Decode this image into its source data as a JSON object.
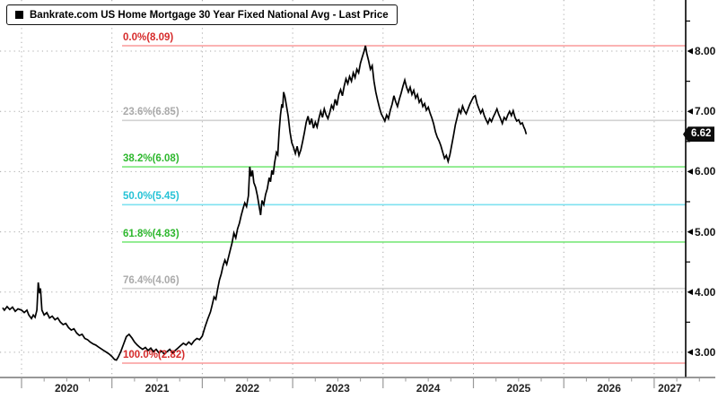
{
  "legend": {
    "label": "Bankrate.com US Home Mortgage 30 Year Fixed National Avg - Last Price"
  },
  "last_price": {
    "value": "6.62"
  },
  "colors": {
    "red_line": "#fa9a9a",
    "red_text": "#d62b2b",
    "gray_line": "#d2d2d2",
    "gray_text": "#aaaaaa",
    "green_line": "#7ce87c",
    "green_text": "#2eb82e",
    "cyan_line": "#7fe2f0",
    "cyan_text": "#25c2d6",
    "price": "#000000",
    "grid": "#a8a8a8",
    "y_axis": "#000000",
    "x_axis": "#777777",
    "badge_bg": "#0d0d0d",
    "badge_text": "#ffffff"
  },
  "chart_data": {
    "type": "line",
    "title": "Bankrate.com US Home Mortgage 30 Year Fixed National Avg - Last Price",
    "last_value": 6.62,
    "fib_levels": [
      {
        "label": "0.0%(8.09)",
        "pct": "0.0%",
        "value": 8.09,
        "color": "red"
      },
      {
        "label": "23.6%(6.85)",
        "pct": "23.6%",
        "value": 6.85,
        "color": "gray"
      },
      {
        "label": "38.2%(6.08)",
        "pct": "38.2%",
        "value": 6.08,
        "color": "green"
      },
      {
        "label": "50.0%(5.45)",
        "pct": "50.0%",
        "value": 5.45,
        "color": "cyan"
      },
      {
        "label": "61.8%(4.83)",
        "pct": "61.8%",
        "value": 4.83,
        "color": "green"
      },
      {
        "label": "76.4%(4.06)",
        "pct": "76.4%",
        "value": 4.06,
        "color": "gray"
      },
      {
        "label": "100.0%(2.82)",
        "pct": "100.0%",
        "value": 2.82,
        "color": "red"
      }
    ],
    "y_axis": {
      "major": [
        {
          "value": 8,
          "label": "8.00"
        },
        {
          "value": 7,
          "label": "7.00"
        },
        {
          "value": 6,
          "label": "6.00"
        },
        {
          "value": 5,
          "label": "5.00"
        },
        {
          "value": 4,
          "label": "4.00"
        },
        {
          "value": 3,
          "label": "3.00"
        }
      ],
      "minor": [
        8.5,
        7.5,
        6.5,
        5.5,
        4.5,
        3.5
      ],
      "range": [
        2.7,
        8.85
      ]
    },
    "x_axis": {
      "years": [
        {
          "value": 2020,
          "label": "2020"
        },
        {
          "value": 2021,
          "label": "2021"
        },
        {
          "value": 2022,
          "label": "2022"
        },
        {
          "value": 2023,
          "label": "2023"
        },
        {
          "value": 2024,
          "label": "2024"
        },
        {
          "value": 2025,
          "label": "2025"
        },
        {
          "value": 2026,
          "label": "2026"
        },
        {
          "value": 2027,
          "label": "2027"
        }
      ],
      "range": [
        2019.77,
        2027.35
      ]
    },
    "series": [
      {
        "name": "Bankrate.com US Home Mortgage 30 Year Fixed National Avg",
        "points": [
          [
            2019.79,
            3.74
          ],
          [
            2019.81,
            3.7
          ],
          [
            2019.84,
            3.76
          ],
          [
            2019.87,
            3.71
          ],
          [
            2019.9,
            3.75
          ],
          [
            2019.93,
            3.68
          ],
          [
            2019.96,
            3.72
          ],
          [
            2020.0,
            3.7
          ],
          [
            2020.03,
            3.66
          ],
          [
            2020.06,
            3.7
          ],
          [
            2020.08,
            3.62
          ],
          [
            2020.11,
            3.56
          ],
          [
            2020.13,
            3.62
          ],
          [
            2020.15,
            3.58
          ],
          [
            2020.17,
            3.7
          ],
          [
            2020.185,
            4.16
          ],
          [
            2020.2,
            3.98
          ],
          [
            2020.21,
            4.06
          ],
          [
            2020.225,
            3.7
          ],
          [
            2020.25,
            3.62
          ],
          [
            2020.28,
            3.66
          ],
          [
            2020.31,
            3.57
          ],
          [
            2020.34,
            3.6
          ],
          [
            2020.37,
            3.54
          ],
          [
            2020.4,
            3.57
          ],
          [
            2020.43,
            3.5
          ],
          [
            2020.46,
            3.46
          ],
          [
            2020.49,
            3.48
          ],
          [
            2020.52,
            3.41
          ],
          [
            2020.55,
            3.37
          ],
          [
            2020.58,
            3.39
          ],
          [
            2020.61,
            3.32
          ],
          [
            2020.64,
            3.28
          ],
          [
            2020.67,
            3.3
          ],
          [
            2020.7,
            3.23
          ],
          [
            2020.73,
            3.21
          ],
          [
            2020.76,
            3.17
          ],
          [
            2020.79,
            3.14
          ],
          [
            2020.82,
            3.12
          ],
          [
            2020.85,
            3.09
          ],
          [
            2020.88,
            3.06
          ],
          [
            2020.91,
            3.03
          ],
          [
            2020.94,
            3.0
          ],
          [
            2020.97,
            2.97
          ],
          [
            2021.0,
            2.93
          ],
          [
            2021.03,
            2.88
          ],
          [
            2021.05,
            2.87
          ],
          [
            2021.07,
            2.92
          ],
          [
            2021.1,
            3.02
          ],
          [
            2021.13,
            3.14
          ],
          [
            2021.16,
            3.26
          ],
          [
            2021.19,
            3.3
          ],
          [
            2021.22,
            3.24
          ],
          [
            2021.25,
            3.17
          ],
          [
            2021.28,
            3.12
          ],
          [
            2021.31,
            3.08
          ],
          [
            2021.34,
            3.05
          ],
          [
            2021.37,
            3.08
          ],
          [
            2021.4,
            3.03
          ],
          [
            2021.43,
            3.07
          ],
          [
            2021.46,
            3.01
          ],
          [
            2021.49,
            3.05
          ],
          [
            2021.52,
            2.99
          ],
          [
            2021.55,
            3.02
          ],
          [
            2021.58,
            2.97
          ],
          [
            2021.61,
            3.01
          ],
          [
            2021.64,
            3.05
          ],
          [
            2021.67,
            2.99
          ],
          [
            2021.7,
            3.03
          ],
          [
            2021.73,
            3.07
          ],
          [
            2021.76,
            3.11
          ],
          [
            2021.79,
            3.15
          ],
          [
            2021.82,
            3.12
          ],
          [
            2021.85,
            3.17
          ],
          [
            2021.88,
            3.13
          ],
          [
            2021.91,
            3.19
          ],
          [
            2021.94,
            3.23
          ],
          [
            2021.97,
            3.21
          ],
          [
            2022.0,
            3.27
          ],
          [
            2022.03,
            3.42
          ],
          [
            2022.06,
            3.55
          ],
          [
            2022.09,
            3.67
          ],
          [
            2022.11,
            3.79
          ],
          [
            2022.13,
            3.92
          ],
          [
            2022.15,
            3.88
          ],
          [
            2022.17,
            4.05
          ],
          [
            2022.19,
            4.2
          ],
          [
            2022.21,
            4.3
          ],
          [
            2022.23,
            4.44
          ],
          [
            2022.25,
            4.53
          ],
          [
            2022.27,
            4.46
          ],
          [
            2022.29,
            4.58
          ],
          [
            2022.31,
            4.7
          ],
          [
            2022.33,
            4.82
          ],
          [
            2022.35,
            4.98
          ],
          [
            2022.37,
            4.9
          ],
          [
            2022.39,
            5.05
          ],
          [
            2022.41,
            5.14
          ],
          [
            2022.43,
            5.27
          ],
          [
            2022.45,
            5.38
          ],
          [
            2022.47,
            5.48
          ],
          [
            2022.49,
            5.42
          ],
          [
            2022.51,
            5.6
          ],
          [
            2022.525,
            6.08
          ],
          [
            2022.54,
            5.92
          ],
          [
            2022.555,
            6.02
          ],
          [
            2022.57,
            5.82
          ],
          [
            2022.59,
            5.74
          ],
          [
            2022.61,
            5.6
          ],
          [
            2022.63,
            5.42
          ],
          [
            2022.645,
            5.28
          ],
          [
            2022.66,
            5.52
          ],
          [
            2022.68,
            5.45
          ],
          [
            2022.7,
            5.62
          ],
          [
            2022.72,
            5.72
          ],
          [
            2022.74,
            5.9
          ],
          [
            2022.755,
            5.83
          ],
          [
            2022.77,
            6.02
          ],
          [
            2022.785,
            5.95
          ],
          [
            2022.8,
            6.15
          ],
          [
            2022.82,
            6.32
          ],
          [
            2022.835,
            6.28
          ],
          [
            2022.85,
            6.66
          ],
          [
            2022.865,
            6.94
          ],
          [
            2022.88,
            7.12
          ],
          [
            2022.89,
            7.06
          ],
          [
            2022.9,
            7.32
          ],
          [
            2022.915,
            7.24
          ],
          [
            2022.93,
            7.1
          ],
          [
            2022.95,
            6.92
          ],
          [
            2022.97,
            6.66
          ],
          [
            2022.99,
            6.48
          ],
          [
            2023.01,
            6.4
          ],
          [
            2023.03,
            6.3
          ],
          [
            2023.05,
            6.42
          ],
          [
            2023.07,
            6.27
          ],
          [
            2023.09,
            6.36
          ],
          [
            2023.11,
            6.5
          ],
          [
            2023.13,
            6.65
          ],
          [
            2023.15,
            6.82
          ],
          [
            2023.17,
            6.92
          ],
          [
            2023.19,
            6.78
          ],
          [
            2023.21,
            6.88
          ],
          [
            2023.23,
            6.72
          ],
          [
            2023.25,
            6.82
          ],
          [
            2023.27,
            6.74
          ],
          [
            2023.29,
            6.88
          ],
          [
            2023.31,
            7.0
          ],
          [
            2023.33,
            6.9
          ],
          [
            2023.35,
            7.04
          ],
          [
            2023.37,
            6.94
          ],
          [
            2023.39,
            6.88
          ],
          [
            2023.41,
            6.98
          ],
          [
            2023.43,
            7.1
          ],
          [
            2023.45,
            7.04
          ],
          [
            2023.47,
            7.2
          ],
          [
            2023.49,
            7.1
          ],
          [
            2023.51,
            7.28
          ],
          [
            2023.53,
            7.36
          ],
          [
            2023.55,
            7.26
          ],
          [
            2023.57,
            7.42
          ],
          [
            2023.59,
            7.54
          ],
          [
            2023.61,
            7.46
          ],
          [
            2023.63,
            7.58
          ],
          [
            2023.65,
            7.5
          ],
          [
            2023.67,
            7.64
          ],
          [
            2023.69,
            7.56
          ],
          [
            2023.71,
            7.7
          ],
          [
            2023.73,
            7.64
          ],
          [
            2023.75,
            7.8
          ],
          [
            2023.77,
            7.9
          ],
          [
            2023.79,
            8.0
          ],
          [
            2023.805,
            8.09
          ],
          [
            2023.82,
            7.96
          ],
          [
            2023.84,
            7.84
          ],
          [
            2023.86,
            7.7
          ],
          [
            2023.88,
            7.76
          ],
          [
            2023.9,
            7.5
          ],
          [
            2023.92,
            7.32
          ],
          [
            2023.94,
            7.18
          ],
          [
            2023.96,
            7.06
          ],
          [
            2023.98,
            6.96
          ],
          [
            2024.0,
            6.9
          ],
          [
            2024.02,
            6.84
          ],
          [
            2024.04,
            6.94
          ],
          [
            2024.06,
            6.88
          ],
          [
            2024.08,
            7.02
          ],
          [
            2024.1,
            7.12
          ],
          [
            2024.12,
            7.26
          ],
          [
            2024.14,
            7.16
          ],
          [
            2024.16,
            7.08
          ],
          [
            2024.18,
            7.2
          ],
          [
            2024.2,
            7.3
          ],
          [
            2024.22,
            7.42
          ],
          [
            2024.24,
            7.52
          ],
          [
            2024.26,
            7.4
          ],
          [
            2024.28,
            7.32
          ],
          [
            2024.3,
            7.4
          ],
          [
            2024.32,
            7.28
          ],
          [
            2024.34,
            7.35
          ],
          [
            2024.36,
            7.22
          ],
          [
            2024.38,
            7.28
          ],
          [
            2024.4,
            7.15
          ],
          [
            2024.42,
            7.2
          ],
          [
            2024.44,
            7.08
          ],
          [
            2024.46,
            7.13
          ],
          [
            2024.48,
            7.02
          ],
          [
            2024.5,
            7.07
          ],
          [
            2024.52,
            6.97
          ],
          [
            2024.54,
            6.89
          ],
          [
            2024.56,
            6.79
          ],
          [
            2024.58,
            6.66
          ],
          [
            2024.6,
            6.57
          ],
          [
            2024.62,
            6.51
          ],
          [
            2024.64,
            6.43
          ],
          [
            2024.66,
            6.32
          ],
          [
            2024.68,
            6.22
          ],
          [
            2024.7,
            6.27
          ],
          [
            2024.72,
            6.17
          ],
          [
            2024.74,
            6.28
          ],
          [
            2024.76,
            6.44
          ],
          [
            2024.78,
            6.6
          ],
          [
            2024.8,
            6.78
          ],
          [
            2024.82,
            6.9
          ],
          [
            2024.84,
            7.03
          ],
          [
            2024.86,
            6.97
          ],
          [
            2024.88,
            7.09
          ],
          [
            2024.9,
            7.01
          ],
          [
            2024.92,
            6.96
          ],
          [
            2024.94,
            7.04
          ],
          [
            2024.96,
            7.12
          ],
          [
            2024.98,
            7.18
          ],
          [
            2025.0,
            7.24
          ],
          [
            2025.02,
            7.26
          ],
          [
            2025.04,
            7.13
          ],
          [
            2025.06,
            7.05
          ],
          [
            2025.08,
            6.97
          ],
          [
            2025.1,
            7.03
          ],
          [
            2025.12,
            6.93
          ],
          [
            2025.14,
            6.86
          ],
          [
            2025.16,
            6.8
          ],
          [
            2025.18,
            6.88
          ],
          [
            2025.2,
            6.83
          ],
          [
            2025.22,
            6.91
          ],
          [
            2025.24,
            6.97
          ],
          [
            2025.26,
            7.04
          ],
          [
            2025.28,
            6.95
          ],
          [
            2025.3,
            6.88
          ],
          [
            2025.32,
            6.8
          ],
          [
            2025.34,
            6.9
          ],
          [
            2025.36,
            6.86
          ],
          [
            2025.38,
            6.94
          ],
          [
            2025.4,
            7.0
          ],
          [
            2025.42,
            6.93
          ],
          [
            2025.44,
            7.01
          ],
          [
            2025.46,
            6.9
          ],
          [
            2025.48,
            6.84
          ],
          [
            2025.5,
            6.86
          ],
          [
            2025.52,
            6.79
          ],
          [
            2025.54,
            6.81
          ],
          [
            2025.56,
            6.73
          ],
          [
            2025.57,
            6.7
          ],
          [
            2025.585,
            6.62
          ]
        ]
      }
    ]
  }
}
